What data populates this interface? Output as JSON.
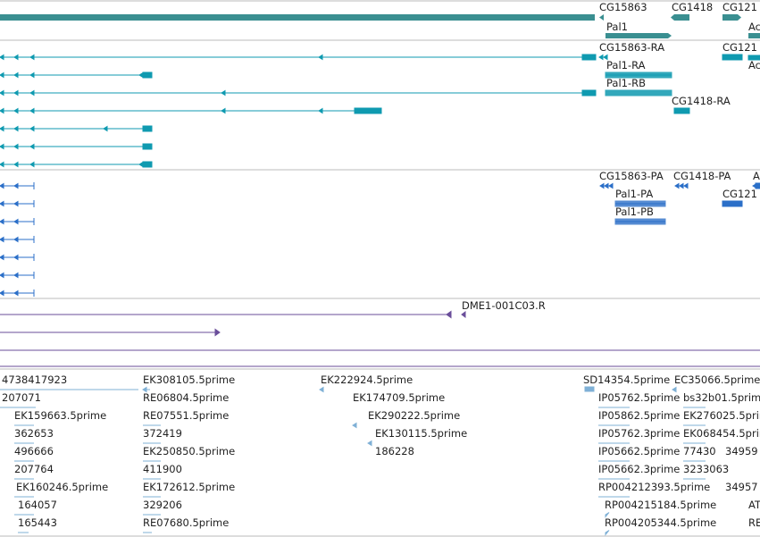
{
  "tracks": {
    "genes": {
      "color": "#3a8f91",
      "labels": [
        "CG15863",
        "CG1418",
        "CG121",
        "Pal1",
        "Ac"
      ]
    },
    "transcripts": {
      "color": "#0f9ab0",
      "labels": [
        "CG15863-RA",
        "CG121",
        "Pal1-RA",
        "Ac",
        "Pal1-RB",
        "CG1418-RA"
      ]
    },
    "proteins": {
      "color": "#2b6fc8",
      "labels": [
        "CG15863-PA",
        "CG1418-PA",
        "A",
        "Pal1-PA",
        "CG121",
        "Pal1-PB"
      ]
    },
    "clones": {
      "color": "#6a4e9a",
      "labels": [
        "DME1-001C03.R"
      ]
    },
    "ests": {
      "color": "#7fb0d6",
      "col1": [
        "4738417923",
        "207071",
        "EK159663.5prime",
        "362653",
        "496666",
        "207764",
        "EK160246.5prime",
        "164057",
        "165443"
      ],
      "col2": [
        "EK308105.5prime",
        "RE06804.5prime",
        "RE07551.5prime",
        "372419",
        "EK250850.5prime",
        "411900",
        "EK172612.5prime",
        "329206",
        "RE07680.5prime"
      ],
      "col3": [
        "EK222924.5prime",
        "EK174709.5prime",
        "EK290222.5prime",
        "EK130115.5prime",
        "186228"
      ],
      "col4": [
        "SD14354.5prime",
        "IP05762.5prime",
        "IP05862.5prime",
        "IP05762.3prime",
        "IP05662.5prime",
        "IP05662.3prime",
        "RP004212393.5prime",
        "RP004215184.5prime",
        "RP004205344.5prime"
      ],
      "col5": [
        "EC35066.5prime",
        "bs32b01.5prime",
        "EK276025.5prime",
        "EK068454.5prime",
        "77430",
        "3233063",
        "34959",
        "34957",
        "AT",
        "RE"
      ]
    }
  }
}
